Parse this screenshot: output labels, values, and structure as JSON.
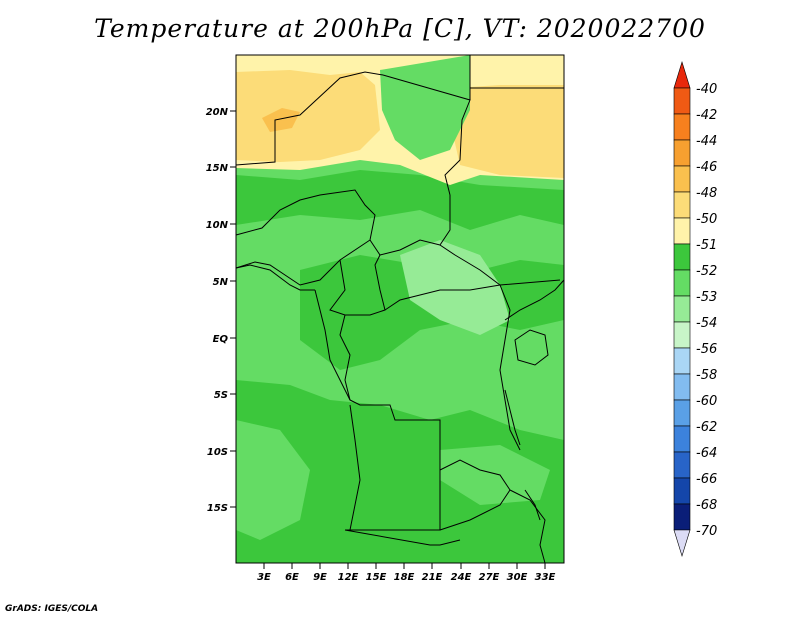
{
  "title": "Temperature at 200hPa [C], VT: 2020022700",
  "credit": "GrADS: IGES/COLA",
  "lat_ticks": [
    "20N",
    "15N",
    "10N",
    "5N",
    "EQ",
    "5S",
    "10S",
    "15S"
  ],
  "lon_ticks": [
    "3E",
    "6E",
    "9E",
    "12E",
    "15E",
    "18E",
    "21E",
    "24E",
    "27E",
    "30E",
    "33E"
  ],
  "colorbar": {
    "labels": [
      "-40",
      "-42",
      "-44",
      "-46",
      "-48",
      "-50",
      "-51",
      "-52",
      "-53",
      "-54",
      "-56",
      "-58",
      "-60",
      "-62",
      "-64",
      "-66",
      "-68",
      "-70"
    ],
    "colors": [
      "#e8280c",
      "#f05a14",
      "#f7801e",
      "#f7a030",
      "#fac04e",
      "#fcdc78",
      "#fff3aa",
      "#3cc73c",
      "#64dc64",
      "#96eb96",
      "#c8f5c8",
      "#aad6f5",
      "#82bcf0",
      "#5aa0e6",
      "#3c82dc",
      "#2864c8",
      "#1446aa",
      "#0a1e78",
      "#dcdcf5"
    ]
  },
  "map": {
    "fields": [
      {
        "name": "warm-north-west",
        "color": "#fcdc78"
      },
      {
        "name": "warm-north-east",
        "color": "#fcdc78"
      },
      {
        "name": "pale-yellow-band",
        "color": "#fff3aa"
      },
      {
        "name": "green-52",
        "color": "#3cc73c"
      },
      {
        "name": "green-53",
        "color": "#64dc64"
      },
      {
        "name": "green-54",
        "color": "#96eb96"
      }
    ]
  }
}
